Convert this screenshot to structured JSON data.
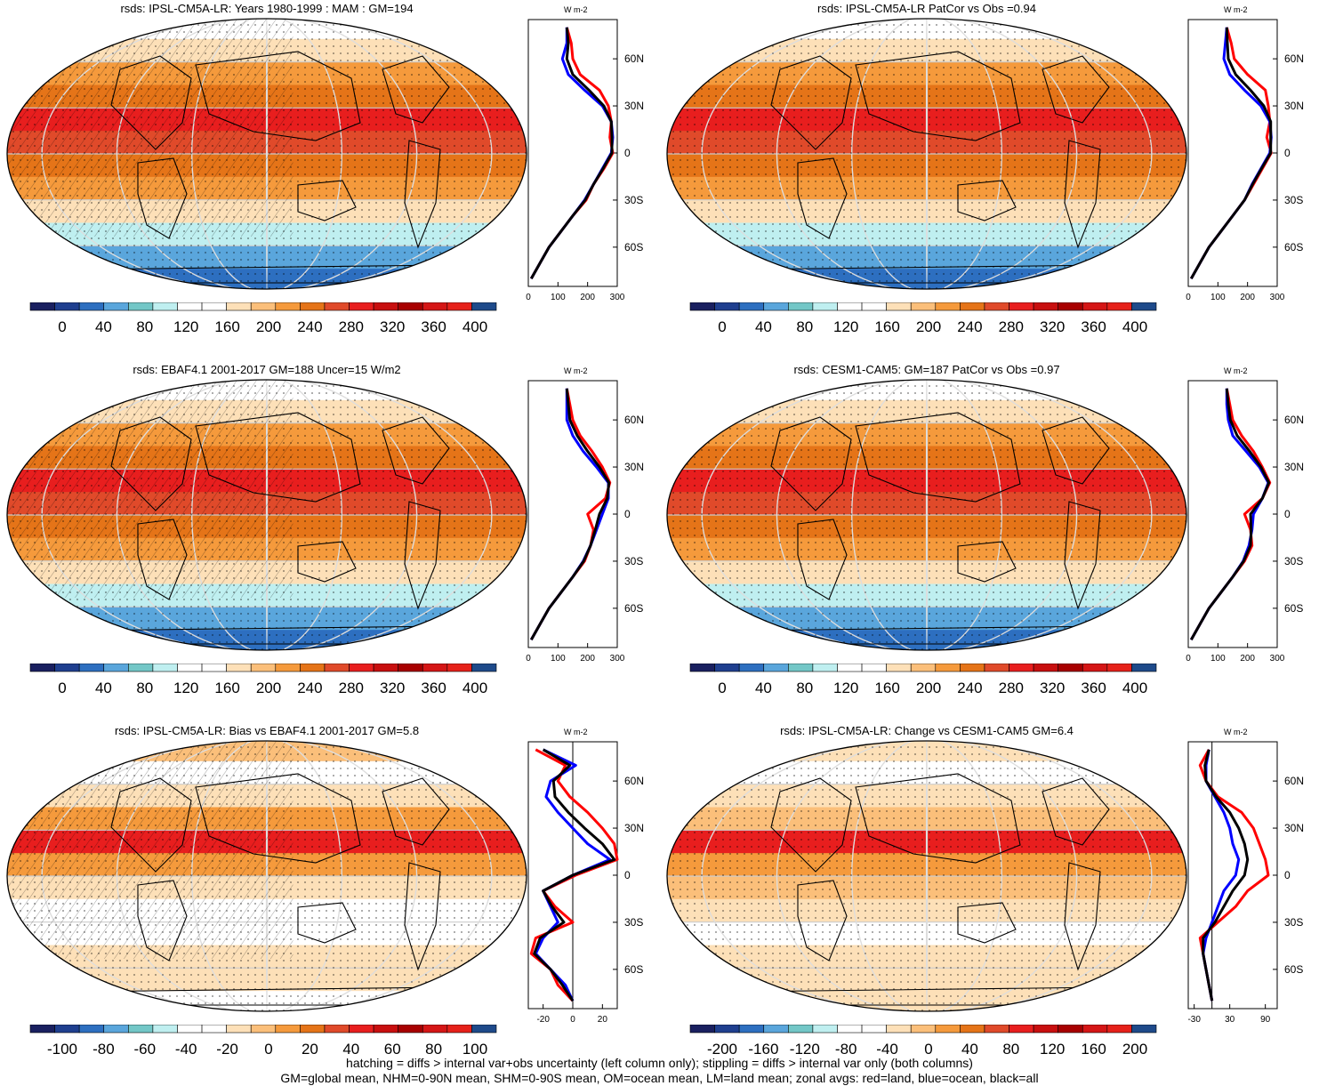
{
  "footer": {
    "line1": "hatching = diffs > internal var+obs uncertainty (left column only); stippling = diffs > internal var only (both columns)",
    "line2": "GM=global mean, NHM=0-90N mean, SHM=0-90S mean, OM=ocean mean, LM=land mean; zonal avgs: red=land, blue=ocean, black=all"
  },
  "colors": {
    "land": "#ff0000",
    "ocean": "#0000ff",
    "all": "#000000",
    "palette": [
      "#1a2060",
      "#1f3f8f",
      "#2d6fc0",
      "#5aa6dc",
      "#73c7c7",
      "#bfeff0",
      "#ffffff",
      "#ffffff",
      "#fde0b8",
      "#fbbf7a",
      "#f59a3c",
      "#e57418",
      "#e04a2a",
      "#e81e1e",
      "#c80f0f",
      "#a80000",
      "#d51616",
      "#e6211a",
      "#1e4a8a"
    ]
  },
  "panels": [
    {
      "title": "rsds: IPSL-CM5A-LR: Years 1980-1999 : MAM : GM=194",
      "kind": "mean",
      "colorbar": {
        "labels": [
          "0",
          "40",
          "80",
          "120",
          "160",
          "200",
          "240",
          "280",
          "320",
          "360",
          "400"
        ]
      },
      "chart_data": {
        "type": "line",
        "title": "W m-2",
        "xlim": [
          0,
          300
        ],
        "xticks": [
          "0",
          "100",
          "200",
          "300"
        ],
        "ylabels": [
          "60N",
          "30N",
          "0",
          "30S",
          "60S"
        ],
        "lat": [
          80,
          70,
          60,
          50,
          40,
          30,
          20,
          10,
          0,
          -10,
          -20,
          -30,
          -40,
          -50,
          -60,
          -70,
          -80
        ],
        "series": [
          {
            "name": "land",
            "values": [
              130,
              145,
              150,
              175,
              240,
              270,
              280,
              275,
              285,
              255,
              220,
              195,
              150,
              110,
              70,
              40,
              10
            ]
          },
          {
            "name": "ocean",
            "values": [
              130,
              130,
              115,
              135,
              190,
              250,
              280,
              285,
              280,
              250,
              220,
              190,
              150,
              110,
              70,
              40,
              10
            ]
          },
          {
            "name": "all",
            "values": [
              130,
              135,
              130,
              150,
              205,
              255,
              280,
              282,
              282,
              252,
              220,
              192,
              150,
              110,
              70,
              40,
              10
            ]
          }
        ]
      }
    },
    {
      "title": "rsds: IPSL-CM5A-LR PatCor vs Obs =0.94",
      "kind": "mean",
      "colorbar": {
        "labels": [
          "0",
          "40",
          "80",
          "120",
          "160",
          "200",
          "240",
          "280",
          "320",
          "360",
          "400"
        ]
      },
      "chart_data": {
        "type": "line",
        "title": "W m-2",
        "xlim": [
          0,
          300
        ],
        "xticks": [
          "0",
          "100",
          "200",
          "300"
        ],
        "ylabels": [
          "60N",
          "30N",
          "0",
          "30S",
          "60S"
        ],
        "lat": [
          80,
          70,
          60,
          50,
          40,
          30,
          20,
          10,
          0,
          -10,
          -20,
          -30,
          -40,
          -50,
          -60,
          -70,
          -80
        ],
        "series": [
          {
            "name": "land",
            "values": [
              130,
              145,
              155,
              200,
              260,
              270,
              275,
              265,
              280,
              250,
              220,
              190,
              150,
              110,
              70,
              40,
              10
            ]
          },
          {
            "name": "ocean",
            "values": [
              130,
              125,
              120,
              140,
              190,
              245,
              275,
              280,
              275,
              245,
              215,
              190,
              150,
              110,
              70,
              40,
              10
            ]
          },
          {
            "name": "all",
            "values": [
              130,
              132,
              135,
              160,
              210,
              255,
              278,
              278,
              278,
              247,
              217,
              190,
              150,
              110,
              70,
              40,
              10
            ]
          }
        ]
      }
    },
    {
      "title": "rsds: EBAF4.1 2001-2017 GM=188 Uncer=15 W/m2",
      "kind": "mean",
      "colorbar": {
        "labels": [
          "0",
          "40",
          "80",
          "120",
          "160",
          "200",
          "240",
          "280",
          "320",
          "360",
          "400"
        ]
      },
      "chart_data": {
        "type": "line",
        "title": "W m-2",
        "xlim": [
          0,
          300
        ],
        "xticks": [
          "0",
          "100",
          "200",
          "300"
        ],
        "ylabels": [
          "60N",
          "30N",
          "0",
          "30S",
          "60S"
        ],
        "lat": [
          80,
          70,
          60,
          50,
          40,
          30,
          20,
          10,
          0,
          -10,
          -20,
          -30,
          -40,
          -50,
          -60,
          -70,
          -80
        ],
        "series": [
          {
            "name": "land",
            "values": [
              130,
              140,
              150,
              175,
              215,
              250,
              275,
              260,
              200,
              220,
              210,
              190,
              150,
              110,
              70,
              40,
              10
            ]
          },
          {
            "name": "ocean",
            "values": [
              130,
              130,
              130,
              150,
              185,
              230,
              270,
              270,
              250,
              230,
              210,
              185,
              150,
              110,
              70,
              40,
              10
            ]
          },
          {
            "name": "all",
            "values": [
              130,
              135,
              140,
              165,
              200,
              240,
              272,
              266,
              240,
              226,
              210,
              187,
              150,
              110,
              70,
              40,
              10
            ]
          }
        ]
      }
    },
    {
      "title": "rsds: CESM1-CAM5: GM=187 PatCor vs Obs =0.97",
      "kind": "mean",
      "colorbar": {
        "labels": [
          "0",
          "40",
          "80",
          "120",
          "160",
          "200",
          "240",
          "280",
          "320",
          "360",
          "400"
        ]
      },
      "chart_data": {
        "type": "line",
        "title": "W m-2",
        "xlim": [
          0,
          300
        ],
        "xticks": [
          "0",
          "100",
          "200",
          "300"
        ],
        "ylabels": [
          "60N",
          "30N",
          "0",
          "30S",
          "60S"
        ],
        "lat": [
          80,
          70,
          60,
          50,
          40,
          30,
          20,
          10,
          0,
          -10,
          -20,
          -30,
          -40,
          -50,
          -60,
          -70,
          -80
        ],
        "series": [
          {
            "name": "land",
            "values": [
              130,
              140,
              150,
              180,
              220,
              250,
              275,
              250,
              190,
              210,
              215,
              190,
              150,
              110,
              70,
              40,
              10
            ]
          },
          {
            "name": "ocean",
            "values": [
              130,
              130,
              135,
              150,
              195,
              240,
              270,
              250,
              220,
              215,
              205,
              185,
              150,
              110,
              70,
              40,
              10
            ]
          },
          {
            "name": "all",
            "values": [
              130,
              135,
              142,
              165,
              207,
              245,
              272,
              250,
              210,
              212,
              210,
              187,
              150,
              110,
              70,
              40,
              10
            ]
          }
        ]
      }
    },
    {
      "title": "rsds: IPSL-CM5A-LR: Bias vs EBAF4.1 2001-2017 GM=5.8",
      "kind": "bias",
      "colorbar": {
        "labels": [
          "-100",
          "-80",
          "-60",
          "-40",
          "-20",
          "0",
          "20",
          "40",
          "60",
          "80",
          "100"
        ]
      },
      "chart_data": {
        "type": "line",
        "title": "W m-2",
        "xlim": [
          -30,
          30
        ],
        "xticks": [
          "-20",
          "0",
          "20"
        ],
        "ylabels": [
          "60N",
          "30N",
          "0",
          "30S",
          "60S"
        ],
        "lat": [
          80,
          70,
          60,
          50,
          40,
          30,
          20,
          10,
          0,
          -10,
          -20,
          -30,
          -40,
          -50,
          -60,
          -70,
          -80
        ],
        "series": [
          {
            "name": "land",
            "values": [
              -25,
              -5,
              -10,
              -2,
              10,
              20,
              28,
              30,
              2,
              -20,
              -12,
              0,
              -25,
              -28,
              -15,
              -10,
              0
            ]
          },
          {
            "name": "ocean",
            "values": [
              -20,
              2,
              -15,
              -18,
              -10,
              0,
              10,
              25,
              0,
              -20,
              -15,
              -10,
              -20,
              -25,
              -15,
              -5,
              0
            ]
          },
          {
            "name": "all",
            "values": [
              -20,
              -2,
              -13,
              -12,
              -3,
              8,
              20,
              28,
              0,
              -20,
              -14,
              -6,
              -22,
              -26,
              -15,
              -7,
              0
            ]
          }
        ]
      }
    },
    {
      "title": "rsds: IPSL-CM5A-LR: Change vs CESM1-CAM5 GM=6.4",
      "kind": "change",
      "colorbar": {
        "labels": [
          "-200",
          "-160",
          "-120",
          "-80",
          "-40",
          "0",
          "40",
          "80",
          "120",
          "160",
          "200"
        ]
      },
      "chart_data": {
        "type": "line",
        "title": "W m-2",
        "xlim": [
          -40,
          110
        ],
        "xticks": [
          "-30",
          "30",
          "90"
        ],
        "ylabels": [
          "60N",
          "30N",
          "0",
          "30S",
          "60S"
        ],
        "lat": [
          80,
          70,
          60,
          50,
          40,
          30,
          20,
          10,
          0,
          -10,
          -20,
          -30,
          -40,
          -50,
          -60,
          -70,
          -80
        ],
        "series": [
          {
            "name": "land",
            "values": [
              -5,
              -20,
              -10,
              10,
              50,
              70,
              80,
              90,
              95,
              60,
              40,
              10,
              -20,
              -15,
              -10,
              -5,
              0
            ]
          },
          {
            "name": "ocean",
            "values": [
              -5,
              -10,
              -10,
              5,
              20,
              30,
              35,
              45,
              40,
              20,
              10,
              0,
              -10,
              -15,
              -10,
              -5,
              0
            ]
          },
          {
            "name": "all",
            "values": [
              -5,
              -12,
              -10,
              7,
              30,
              45,
              55,
              60,
              55,
              35,
              20,
              5,
              -15,
              -15,
              -10,
              -5,
              0
            ]
          }
        ]
      }
    }
  ]
}
